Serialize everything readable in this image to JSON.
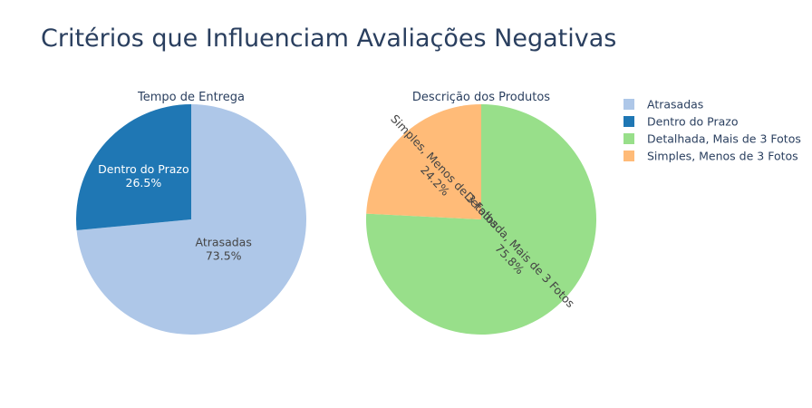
{
  "chart_title": "Critérios que Influenciam Avaliações Negativas",
  "legend": [
    {
      "label": "Atrasadas",
      "color": "#aec7e8"
    },
    {
      "label": "Dentro do Prazo",
      "color": "#1f77b4"
    },
    {
      "label": "Detalhada, Mais de 3 Fotos",
      "color": "#98df8a"
    },
    {
      "label": "Simples, Menos de 3 Fotos",
      "color": "#ffbb78"
    }
  ],
  "chart_data": [
    {
      "type": "pie",
      "title": "Tempo de Entrega",
      "slices": [
        {
          "label": "Atrasadas",
          "value": 73.5,
          "percent_label": "73.5%",
          "color": "#aec7e8"
        },
        {
          "label": "Dentro do Prazo",
          "value": 26.5,
          "percent_label": "26.5%",
          "color": "#1f77b4"
        }
      ]
    },
    {
      "type": "pie",
      "title": "Descrição dos Produtos",
      "slices": [
        {
          "label": "Detalhada, Mais de 3 Fotos",
          "value": 75.8,
          "percent_label": "75.8%",
          "color": "#98df8a"
        },
        {
          "label": "Simples, Menos de 3 Fotos",
          "value": 24.2,
          "percent_label": "24.2%",
          "color": "#ffbb78"
        }
      ]
    }
  ]
}
